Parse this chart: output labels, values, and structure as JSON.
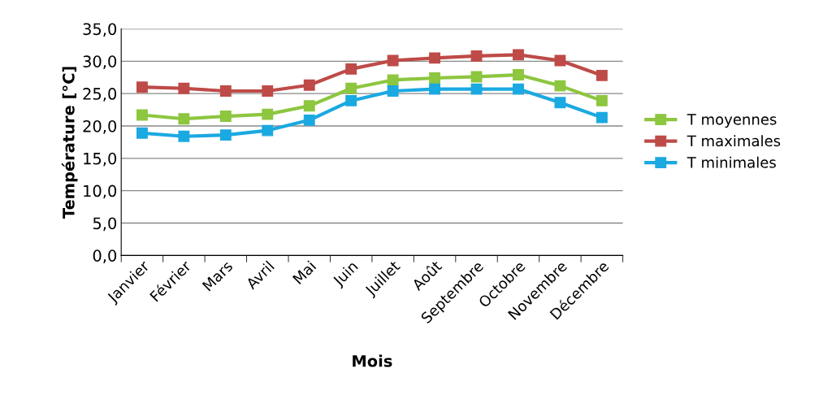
{
  "chart_data": {
    "type": "line",
    "xlabel": "Mois",
    "ylabel": "Température [°C]",
    "categories": [
      "Janvier",
      "Février",
      "Mars",
      "Avril",
      "Mai",
      "Juin",
      "Juillet",
      "Août",
      "Septembre",
      "Octobre",
      "Novembre",
      "Décembre"
    ],
    "series": [
      {
        "name": "T moyennes",
        "color": "#8dc63f",
        "values": [
          21.7,
          21.1,
          21.5,
          21.8,
          23.1,
          25.8,
          27.1,
          27.4,
          27.6,
          27.9,
          26.2,
          23.9
        ]
      },
      {
        "name": "T maximales",
        "color": "#be4b48",
        "values": [
          26.0,
          25.8,
          25.4,
          25.4,
          26.3,
          28.8,
          30.1,
          30.5,
          30.8,
          31.0,
          30.1,
          27.8
        ]
      },
      {
        "name": "T minimales",
        "color": "#1ba9e1",
        "values": [
          18.9,
          18.4,
          18.6,
          19.3,
          20.9,
          23.9,
          25.4,
          25.7,
          25.7,
          25.7,
          23.6,
          21.3
        ]
      }
    ],
    "ylim": [
      0,
      35
    ],
    "yticks": [
      {
        "value": 0,
        "label": "0,0"
      },
      {
        "value": 5,
        "label": "5,0"
      },
      {
        "value": 10,
        "label": "10,0"
      },
      {
        "value": 15,
        "label": "15,0"
      },
      {
        "value": 20,
        "label": "20,0"
      },
      {
        "value": 25,
        "label": "25,0"
      },
      {
        "value": 30,
        "label": "30,0"
      },
      {
        "value": 35,
        "label": "35,0"
      }
    ],
    "grid": "y",
    "legend": "right",
    "marker": "square",
    "line_style": "solid"
  }
}
